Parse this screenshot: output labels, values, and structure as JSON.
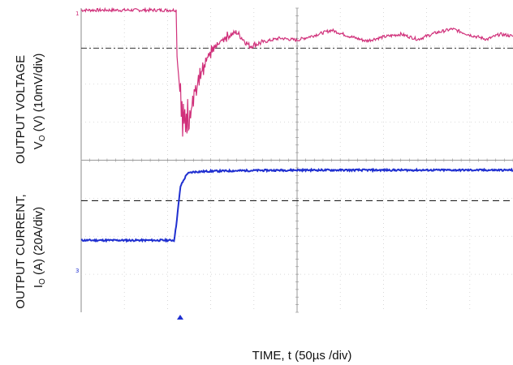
{
  "chart_data": [
    {
      "type": "line",
      "panel": "top",
      "ylabel_line1": "OUTPUT VOLTAGE",
      "ylabel_line2_var": "V",
      "ylabel_line2_sub": "O",
      "ylabel_line2_rest": " (V) (10mV/div)",
      "xlabel": "TIME, t (50µs /div)",
      "x_unit": "div",
      "y_unit": "div",
      "xlim": [
        0,
        10
      ],
      "ylim": [
        0,
        8
      ],
      "grid": true,
      "series": [
        {
          "color": "#d0307a",
          "x": [
            0,
            2.2,
            2.22,
            2.35,
            2.5,
            2.7,
            3.0,
            3.3,
            3.6,
            3.9,
            4.2,
            4.6,
            5.0,
            5.4,
            5.8,
            6.2,
            6.6,
            7.0,
            7.4,
            7.8,
            8.2,
            8.6,
            9.0,
            9.4,
            9.7,
            10
          ],
          "y": [
            7.95,
            7.95,
            6.8,
            5.1,
            5.4,
            6.1,
            6.9,
            7.25,
            7.4,
            7.05,
            7.15,
            7.25,
            7.2,
            7.32,
            7.45,
            7.3,
            7.18,
            7.28,
            7.35,
            7.22,
            7.38,
            7.48,
            7.33,
            7.22,
            7.35,
            7.3
          ]
        }
      ],
      "reference_line": {
        "y": 7.0,
        "style": "dash-dot"
      }
    },
    {
      "type": "line",
      "panel": "bottom",
      "ylabel_line1": "OUTPUT CURRENT,",
      "ylabel_line2_var": "I",
      "ylabel_line2_sub": "O",
      "ylabel_line2_rest": " (A)  (20A/div)",
      "xlim": [
        0,
        10
      ],
      "ylim": [
        0,
        8
      ],
      "grid": true,
      "series": [
        {
          "color": "#1f2fd0",
          "x": [
            0,
            2.15,
            2.2,
            2.3,
            2.45,
            2.6,
            3.0,
            4.0,
            5.0,
            6.0,
            7.0,
            8.0,
            9.0,
            10
          ],
          "y": [
            2.0,
            2.0,
            2.4,
            3.5,
            3.85,
            3.9,
            3.92,
            3.94,
            3.95,
            3.95,
            3.95,
            3.95,
            3.95,
            3.95
          ]
        }
      ],
      "reference_line": {
        "y": 3.1,
        "style": "dashed"
      }
    }
  ]
}
